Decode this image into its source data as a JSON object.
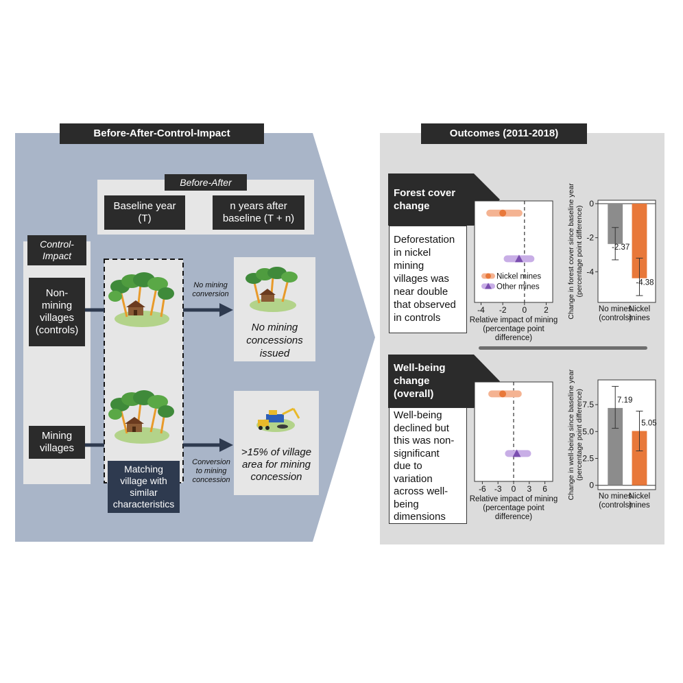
{
  "left": {
    "title": "Before-After-Control-Impact",
    "before_after": {
      "label": "Before-After",
      "baseline": [
        "Baseline year",
        "(T)"
      ],
      "after": [
        "n years after",
        "baseline (T + n)"
      ]
    },
    "control_impact": {
      "label": [
        "Control-",
        "Impact"
      ],
      "non_mining": [
        "Non-",
        "mining",
        "villages",
        "(controls)"
      ],
      "mining": [
        "Mining",
        "villages"
      ]
    },
    "matching": [
      "Matching",
      "village with",
      "similar",
      "characteristics"
    ],
    "arrow_top_label": [
      "No mining",
      "conversion"
    ],
    "arrow_bottom_label": [
      "Conversion",
      "to mining",
      "concession"
    ],
    "outcome_top": [
      "No mining",
      "concessions",
      "issued"
    ],
    "outcome_bottom": [
      ">15% of village",
      "area for mining",
      "concession"
    ]
  },
  "right": {
    "title": "Outcomes (2011-2018)",
    "forest": {
      "header": [
        "Forest cover",
        "change"
      ],
      "text": [
        "Deforestation",
        "in nickel",
        "mining",
        "villages was",
        "near double",
        "that observed",
        "in controls"
      ]
    },
    "wellbeing": {
      "header": [
        "Well-being",
        "change",
        "(overall)"
      ],
      "text": [
        "Well-being",
        "declined but",
        "this was non-",
        "significant",
        "due to",
        "variation",
        "across well-",
        "being",
        "dimensions"
      ]
    }
  },
  "colors": {
    "left_panel": "#a9b5c8",
    "right_panel": "#dcdcdc",
    "inner_box": "#e6e6e6",
    "dark": "#2b2b2b",
    "navy": "#2e3a4f",
    "arrow": "#2e3a4f",
    "nickel": "#e8783a",
    "nickel_light": "#f4b392",
    "other": "#7b4fb0",
    "other_light": "#c8aee6",
    "control_bar": "#8c8c8c",
    "separator": "#6e6e6e"
  },
  "chart_data": [
    {
      "type": "scatter",
      "xlabel": [
        "Relative impact of mining",
        "(percentage point",
        "difference)"
      ],
      "xticks": [
        -4,
        -2,
        0,
        2
      ],
      "xlim": [
        -4.6,
        2.6
      ],
      "reference_line": 0,
      "legend": [
        "Nickel mines",
        "Other mines"
      ],
      "legend_position": "bottom-left",
      "series": [
        {
          "name": "Nickel mines",
          "estimate": -2.0,
          "ci": [
            -3.2,
            -0.5
          ],
          "marker": "circle"
        },
        {
          "name": "Other mines",
          "estimate": -0.5,
          "ci": [
            -1.6,
            0.6
          ],
          "marker": "triangle"
        }
      ]
    },
    {
      "type": "bar",
      "ylabel": [
        "Change in forest cover since baseline year",
        "(percentage point difference)"
      ],
      "categories": [
        [
          "No mines",
          "(controls)"
        ],
        [
          "Nickel",
          "mines"
        ]
      ],
      "values": [
        -2.37,
        -4.38
      ],
      "error": [
        [
          -3.3,
          -1.4
        ],
        [
          -5.4,
          -3.2
        ]
      ],
      "value_labels": [
        "-2.37",
        "-4.38"
      ],
      "yticks": [
        0,
        -2,
        -4
      ],
      "ylim": [
        -5.8,
        0.2
      ]
    },
    {
      "type": "scatter",
      "xlabel": [
        "Relative impact of mining",
        "(percentage point",
        "difference)"
      ],
      "xticks": [
        -6,
        -3,
        0,
        3,
        6
      ],
      "xlim": [
        -7.5,
        7.5
      ],
      "reference_line": 0,
      "series": [
        {
          "name": "Nickel mines",
          "estimate": -2.1,
          "ci": [
            -4.2,
            0.9
          ]
        },
        {
          "name": "Other mines",
          "estimate": 0.6,
          "ci": [
            -1.0,
            2.7
          ]
        }
      ]
    },
    {
      "type": "bar",
      "ylabel": [
        "Change in well-being since baseline year",
        "(percentage point difference)"
      ],
      "categories": [
        [
          "No mines",
          "(controls)"
        ],
        [
          "Nickel",
          "mines"
        ]
      ],
      "values": [
        7.19,
        5.05
      ],
      "error": [
        [
          5.3,
          9.2
        ],
        [
          3.2,
          6.9
        ]
      ],
      "value_labels": [
        "7.19",
        "5.05"
      ],
      "yticks": [
        "0",
        "2.5",
        "5.0",
        "7.5"
      ],
      "ylim": [
        -0.4,
        9.8
      ]
    }
  ]
}
